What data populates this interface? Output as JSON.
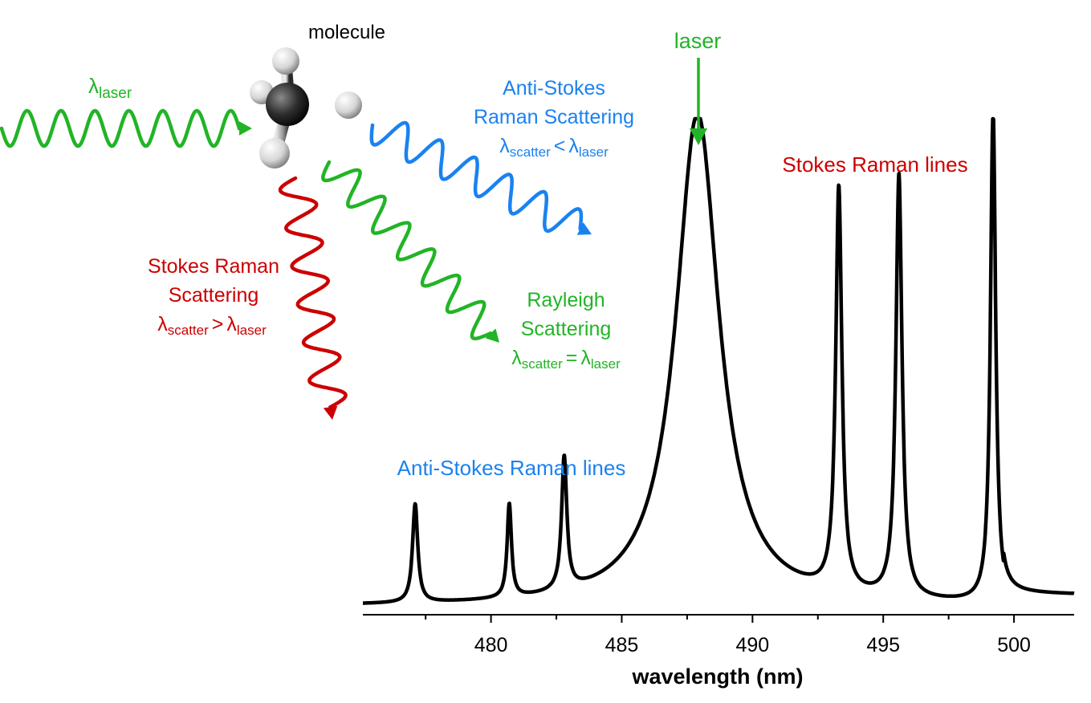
{
  "labels": {
    "molecule": "molecule",
    "lambda": "λ",
    "sub_laser": "laser",
    "sub_scatter": "scatter",
    "anti_stokes_l1": "Anti-Stokes",
    "anti_stokes_l2": "Raman Scattering",
    "anti_stokes_rel": "<",
    "stokes_l1": "Stokes Raman",
    "stokes_l2": "Scattering",
    "stokes_rel": ">",
    "rayleigh_l1": "Rayleigh",
    "rayleigh_l2": "Scattering",
    "rayleigh_rel": "=",
    "laser_peak": "laser",
    "stokes_lines": "Stokes Raman lines",
    "anti_stokes_lines": "Anti-Stokes Raman lines"
  },
  "colors": {
    "laser": "#22b427",
    "anti_stokes": "#1a82f0",
    "stokes": "#cc0000",
    "spectrum": "#000000"
  },
  "chart_data": {
    "type": "line",
    "title": "",
    "xlabel": "wavelength (nm)",
    "ylabel": "",
    "xlim": [
      475.1,
      502.3
    ],
    "ylim": [
      0,
      1
    ],
    "xticks": [
      480,
      485,
      490,
      495,
      500
    ],
    "xtick_labels": [
      "480",
      "485",
      "490",
      "495",
      "500"
    ],
    "grid": false,
    "series": [
      {
        "peaks": [
          {
            "center": 477.1,
            "height": 0.2,
            "width": 0.12,
            "note": "anti-stokes"
          },
          {
            "center": 480.7,
            "height": 0.19,
            "width": 0.1
          },
          {
            "center": 482.8,
            "height": 0.27,
            "width": 0.12
          },
          {
            "center": 487.9,
            "height": 1.0,
            "width": 1.0
          },
          {
            "center": 493.3,
            "height": 0.82,
            "width": 0.14
          },
          {
            "center": 495.6,
            "height": 0.86,
            "width": 0.14
          },
          {
            "center": 499.2,
            "height": 1.0,
            "width": 0.12
          }
        ],
        "baseline": 0.01
      }
    ]
  }
}
